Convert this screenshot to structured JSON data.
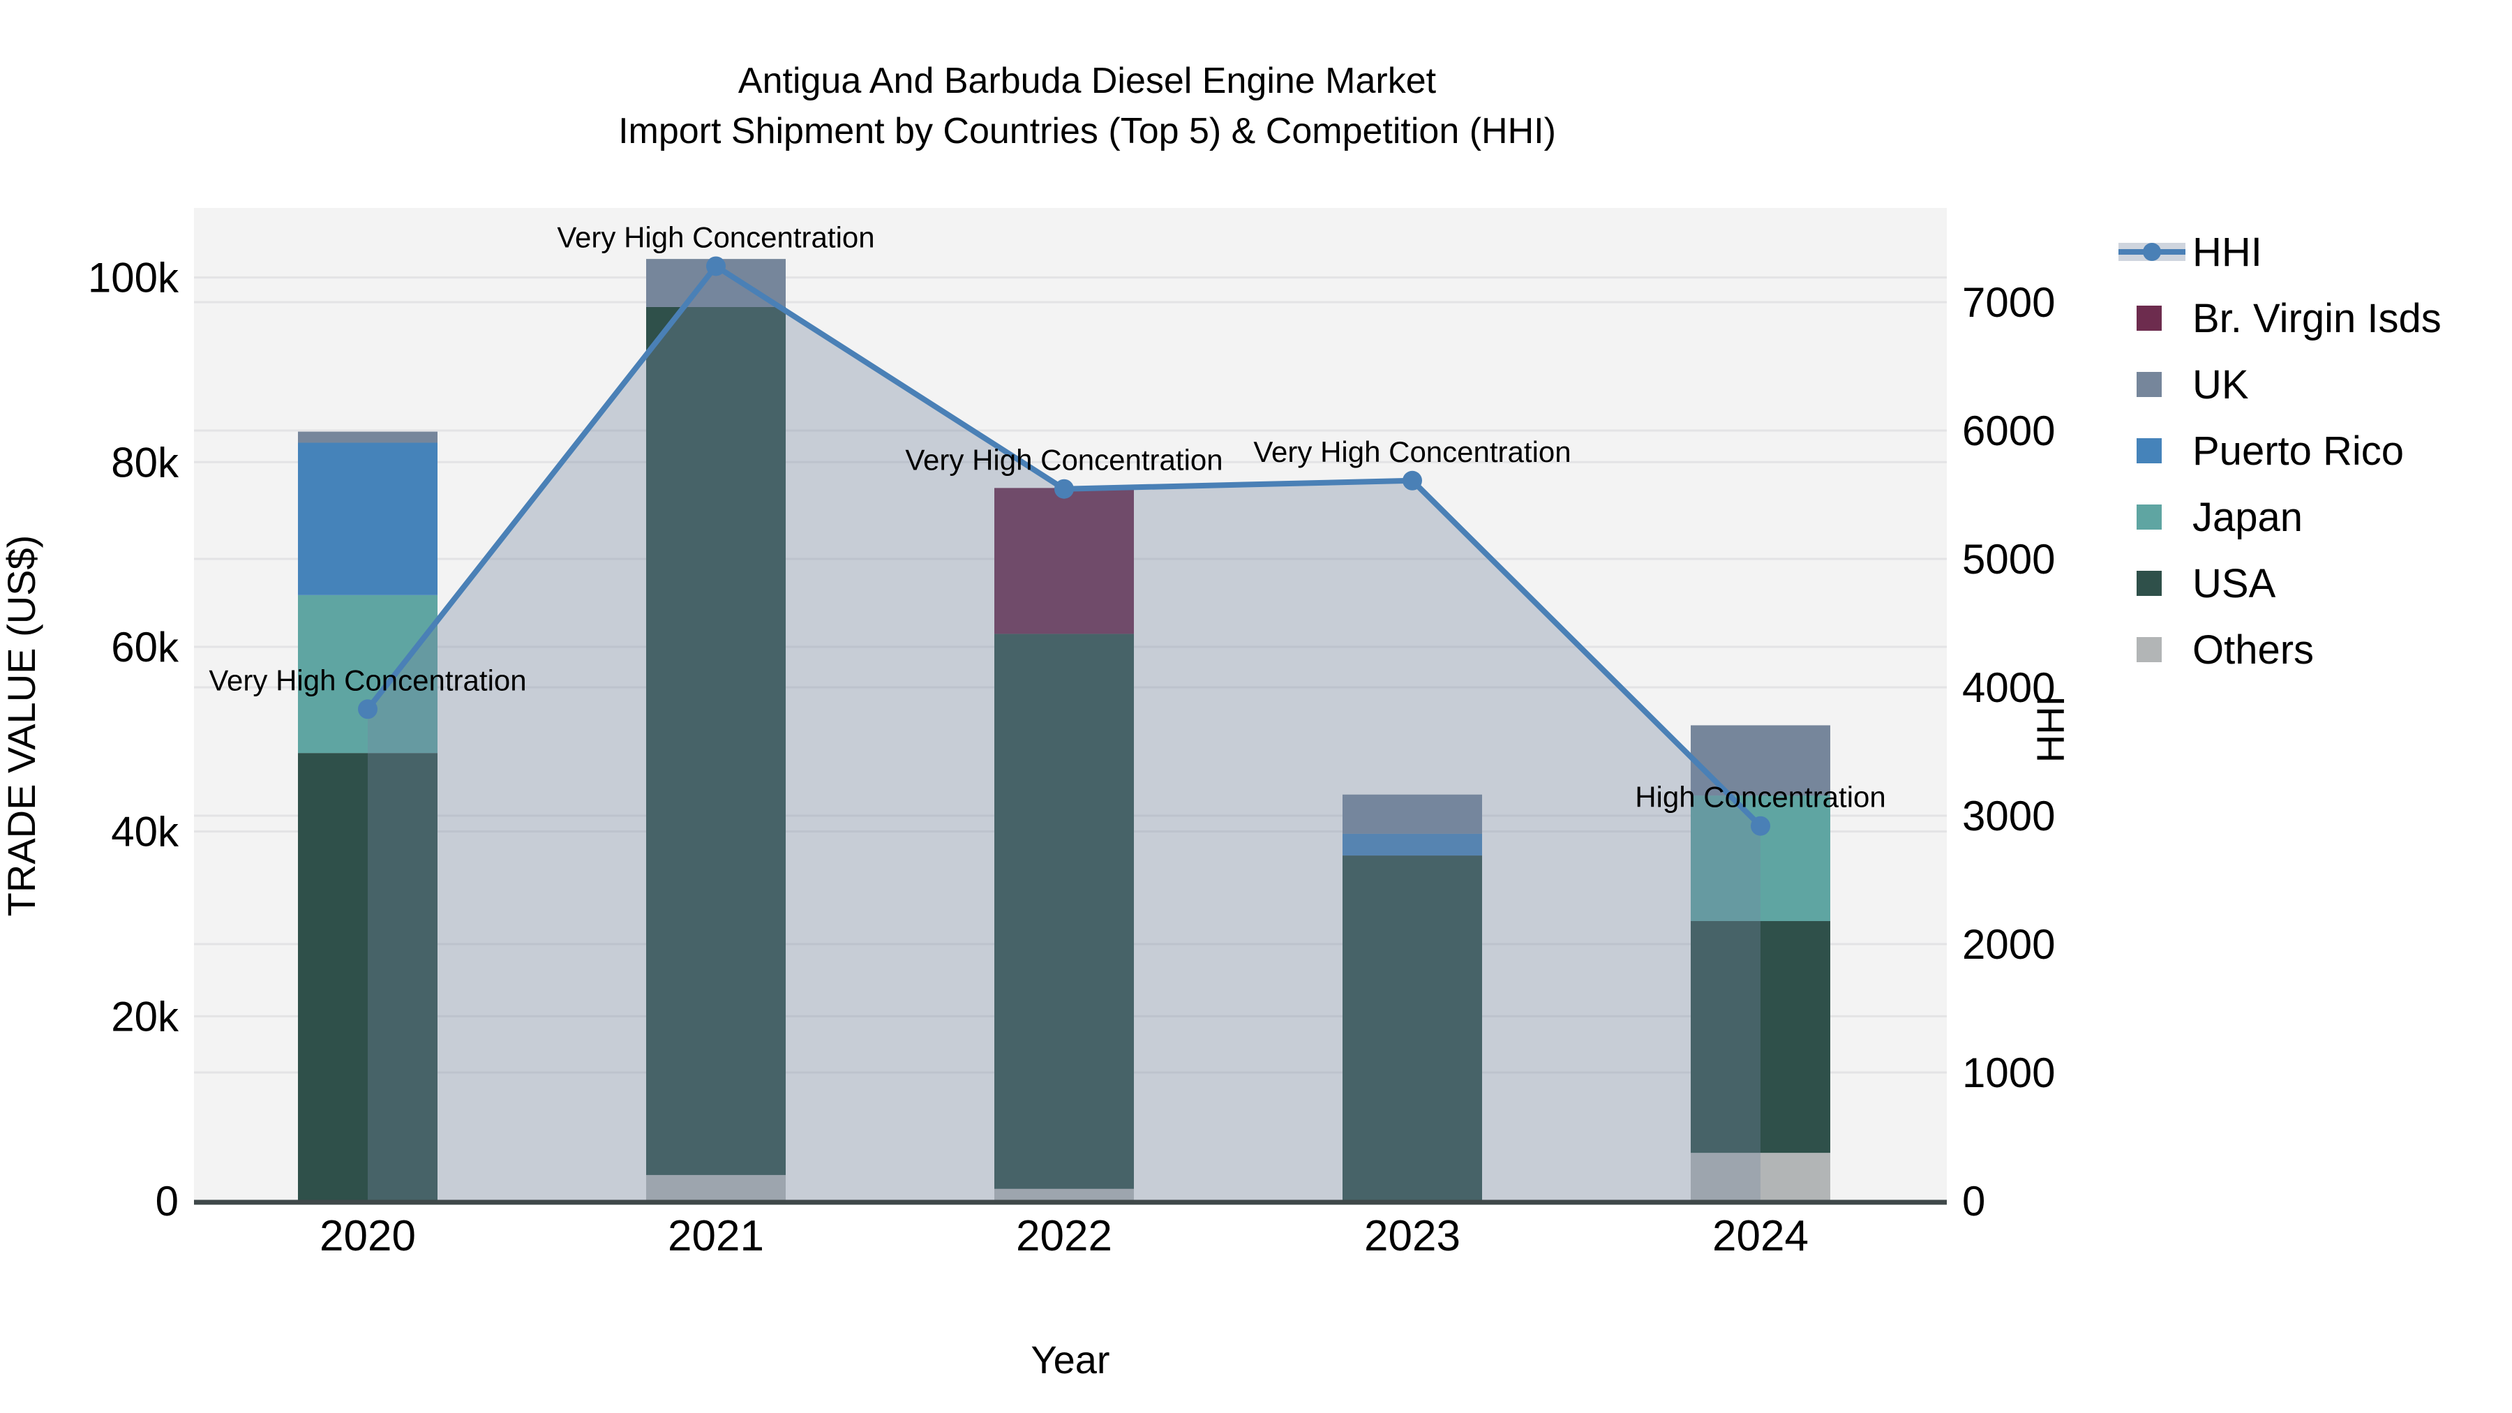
{
  "title": {
    "line1": "Antigua And Barbuda Diesel Engine Market",
    "line2": "Import Shipment by Countries (Top 5) & Competition (HHI)"
  },
  "x_axis": {
    "label": "Year"
  },
  "y_left_axis": {
    "label": "TRADE VALUE (US$)",
    "tick_labels": [
      "0",
      "20k",
      "40k",
      "60k",
      "80k",
      "100k"
    ],
    "tick_values_usd": [
      0,
      20000,
      40000,
      60000,
      80000,
      100000
    ]
  },
  "y_right_axis": {
    "label": "HHI",
    "tick_labels": [
      "0",
      "1000",
      "2000",
      "3000",
      "4000",
      "5000",
      "6000",
      "7000"
    ],
    "tick_values": [
      0,
      1000,
      2000,
      3000,
      4000,
      5000,
      6000,
      7000
    ]
  },
  "legend": {
    "items": [
      {
        "label": "HHI",
        "kind": "line",
        "color": "#4a80b6"
      },
      {
        "label": "Br. Virgin Isds",
        "kind": "swatch",
        "color": "#6d2c4e"
      },
      {
        "label": "UK",
        "kind": "swatch",
        "color": "#76869b"
      },
      {
        "label": "Puerto Rico",
        "kind": "swatch",
        "color": "#4583ba"
      },
      {
        "label": "Japan",
        "kind": "swatch",
        "color": "#5fa5a2"
      },
      {
        "label": "USA",
        "kind": "swatch",
        "color": "#2f504a"
      },
      {
        "label": "Others",
        "kind": "swatch",
        "color": "#b2b5b6"
      }
    ]
  },
  "chart_data": {
    "type": "bar",
    "subtype": "stacked-bars-with-dual-axis-line",
    "title": "Antigua And Barbuda Diesel Engine Market Import Shipment by Countries (Top 5) & Competition (HHI)",
    "xlabel": "Year",
    "ylabel_left": "TRADE VALUE (US$)",
    "ylabel_right": "HHI",
    "categories": [
      "2020",
      "2021",
      "2022",
      "2023",
      "2024"
    ],
    "bar_unit": "US$",
    "bar_series": [
      {
        "name": "Others",
        "color": "#b2b5b6",
        "values": [
          0,
          2800,
          1300,
          0,
          5200
        ]
      },
      {
        "name": "USA",
        "color": "#2f504a",
        "values": [
          48500,
          94000,
          60100,
          37400,
          25100
        ]
      },
      {
        "name": "Japan",
        "color": "#5fa5a2",
        "values": [
          17100,
          0,
          0,
          0,
          13600
        ]
      },
      {
        "name": "Puerto Rico",
        "color": "#4583ba",
        "values": [
          16500,
          0,
          0,
          2350,
          0
        ]
      },
      {
        "name": "UK",
        "color": "#76869b",
        "values": [
          1200,
          5200,
          0,
          4250,
          7600
        ]
      },
      {
        "name": "Br. Virgin Isds",
        "color": "#6d2c4e",
        "values": [
          0,
          0,
          15800,
          0,
          0
        ]
      }
    ],
    "bar_totals_usd": [
      83300,
      102000,
      77200,
      44000,
      51500
    ],
    "line_series": {
      "name": "HHI",
      "axis": "right",
      "color": "#4a80b6",
      "values": [
        3830,
        7280,
        5545,
        5610,
        2920
      ]
    },
    "annotations": [
      {
        "category": "2020",
        "text": "Very High Concentration"
      },
      {
        "category": "2021",
        "text": "Very High Concentration"
      },
      {
        "category": "2022",
        "text": "Very High Concentration"
      },
      {
        "category": "2023",
        "text": "Very High Concentration"
      },
      {
        "category": "2024",
        "text": "High Concentration"
      }
    ],
    "ylim_left_usd": [
      0,
      107500
    ],
    "ylim_right_hhi": [
      0,
      7730
    ],
    "grid": true,
    "legend_position": "right"
  },
  "colors": {
    "figure_bg": "#ffffff",
    "plot_bg": "#f3f3f3",
    "grid": "#e3e3e5",
    "axis_line": "#3f4849",
    "hhi_line": "#4a80b6",
    "hhi_area_fill": "rgba(118,134,160,0.35)",
    "hhi_legend_band": "#cfd5de"
  }
}
